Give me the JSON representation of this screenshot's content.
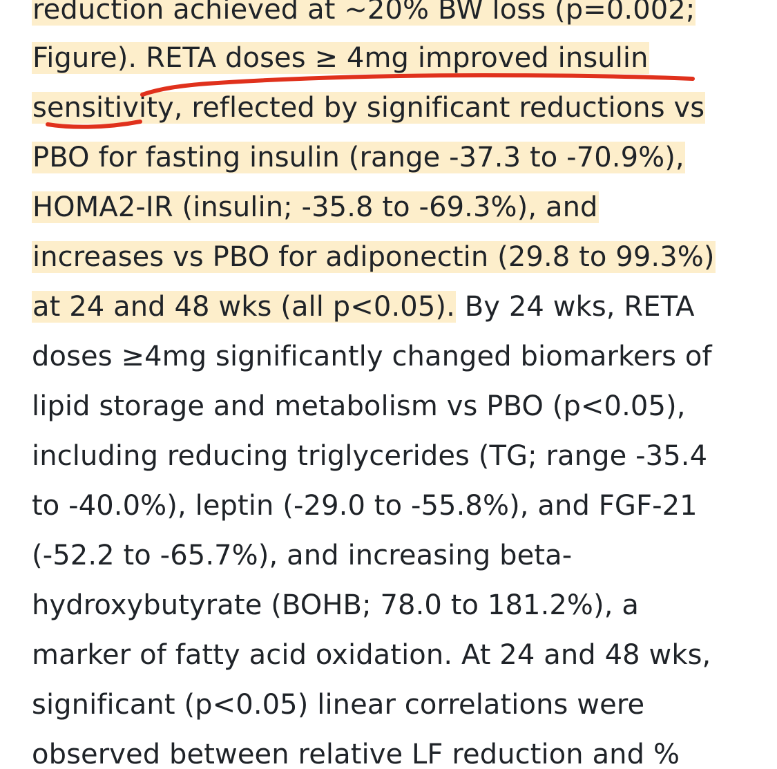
{
  "highlight_color": "#fdeecb",
  "annotation_color": "#e0311c",
  "lines": [
    {
      "highlighted": "reduction achieved at ~20% BW loss (p=0.002;",
      "plain": ""
    },
    {
      "highlighted": "Figure). RETA doses ≥ 4mg improved insulin",
      "plain": ""
    },
    {
      "highlighted": "sensitivity, reflected by significant reductions vs",
      "plain": ""
    },
    {
      "highlighted": "PBO for fasting insulin (range -37.3 to -70.9%),",
      "plain": ""
    },
    {
      "highlighted": "HOMA2-IR (insulin; -35.8 to -69.3%), and",
      "plain": ""
    },
    {
      "highlighted": "increases vs PBO for adiponectin (29.8 to 99.3%)",
      "plain": ""
    },
    {
      "highlighted": "at 24 and 48 wks (all p<0.05).",
      "plain": " By 24 wks, RETA"
    },
    {
      "highlighted": "",
      "plain": "doses ≥4mg significantly changed biomarkers of"
    },
    {
      "highlighted": "",
      "plain": "lipid storage and metabolism vs PBO (p<0.05),"
    },
    {
      "highlighted": "",
      "plain": "including reducing triglycerides (TG; range -35.4"
    },
    {
      "highlighted": "",
      "plain": "to -40.0%), leptin (-29.0 to -55.8%), and FGF-21"
    },
    {
      "highlighted": "",
      "plain": "(-52.2 to -65.7%), and increasing beta-"
    },
    {
      "highlighted": "",
      "plain": "hydroxybutyrate (BOHB; 78.0 to 181.2%), a"
    },
    {
      "highlighted": "",
      "plain": "marker of fatty acid oxidation. At 24 and 48 wks,"
    },
    {
      "highlighted": "",
      "plain": "significant (p<0.05) linear correlations were"
    },
    {
      "highlighted": "",
      "plain": "observed between relative LF reduction and %"
    }
  ]
}
